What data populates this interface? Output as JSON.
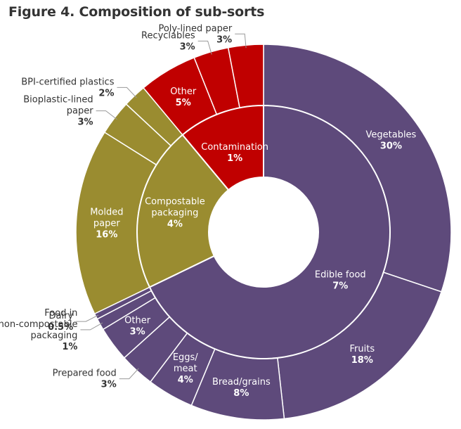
{
  "figure_title": "Figure 4. Composition of sub-sorts",
  "colors": {
    "Edible food": "#5e4a7b",
    "Compostable packaging": "#9a8c30",
    "Contamination": "#c00000",
    "separator": "#ffffff",
    "leader": "#999999",
    "outside_text": "#333333"
  },
  "chart_data": {
    "type": "donut",
    "title": "Figure 4. Composition of sub-sorts",
    "start": "12 o'clock, clockwise",
    "inner_ring": [
      {
        "name": "Edible food",
        "label": [
          "Edible food"
        ],
        "value_label": "7%"
      },
      {
        "name": "Compostable packaging",
        "label": [
          "Compostable",
          "packaging"
        ],
        "value_label": "4%"
      },
      {
        "name": "Contamination",
        "label": [
          "Contamination"
        ],
        "value_label": "1%"
      }
    ],
    "outer_ring": [
      {
        "group": "Edible food",
        "name": "Vegetables",
        "value": 30,
        "label": [
          "Vegetables"
        ],
        "value_label": "30%",
        "placement": "inside"
      },
      {
        "group": "Edible food",
        "name": "Fruits",
        "value": 18,
        "label": [
          "Fruits"
        ],
        "value_label": "18%",
        "placement": "inside"
      },
      {
        "group": "Edible food",
        "name": "Bread/grains",
        "value": 8,
        "label": [
          "Bread/grains"
        ],
        "value_label": "8%",
        "placement": "inside"
      },
      {
        "group": "Edible food",
        "name": "Eggs/meat",
        "value": 4,
        "label": [
          "Eggs/",
          "meat"
        ],
        "value_label": "4%",
        "placement": "inside"
      },
      {
        "group": "Edible food",
        "name": "Prepared food",
        "value": 3,
        "label": [
          "Prepared food"
        ],
        "value_label": "3%",
        "placement": "outside"
      },
      {
        "group": "Edible food",
        "name": "Other",
        "value": 3,
        "label": [
          "Other"
        ],
        "value_label": "3%",
        "placement": "inside"
      },
      {
        "group": "Edible food",
        "name": "Food in non-compostable packaging",
        "value": 1,
        "label": [
          "Food in",
          "non-compostable",
          "packaging"
        ],
        "value_label": "1%",
        "placement": "outside"
      },
      {
        "group": "Edible food",
        "name": "Dairy",
        "value": 0.5,
        "label": [
          "Dairy"
        ],
        "value_label": "0.5%",
        "placement": "outside"
      },
      {
        "group": "Compostable packaging",
        "name": "Molded paper",
        "value": 16,
        "label": [
          "Molded",
          "paper"
        ],
        "value_label": "16%",
        "placement": "inside"
      },
      {
        "group": "Compostable packaging",
        "name": "Bioplastic-lined paper",
        "value": 3,
        "label": [
          "Bioplastic-lined",
          "paper"
        ],
        "value_label": "3%",
        "placement": "outside"
      },
      {
        "group": "Compostable packaging",
        "name": "BPI-certified plastics",
        "value": 2,
        "label": [
          "BPI-certified plastics"
        ],
        "value_label": "2%",
        "placement": "outside"
      },
      {
        "group": "Contamination",
        "name": "Other",
        "value": 5,
        "label": [
          "Other"
        ],
        "value_label": "5%",
        "placement": "inside"
      },
      {
        "group": "Contamination",
        "name": "Recyclables",
        "value": 3,
        "label": [
          "Recyclables"
        ],
        "value_label": "3%",
        "placement": "outside"
      },
      {
        "group": "Contamination",
        "name": "Poly-lined paper",
        "value": 3,
        "label": [
          "Poly-lined paper"
        ],
        "value_label": "3%",
        "placement": "outside"
      }
    ]
  }
}
